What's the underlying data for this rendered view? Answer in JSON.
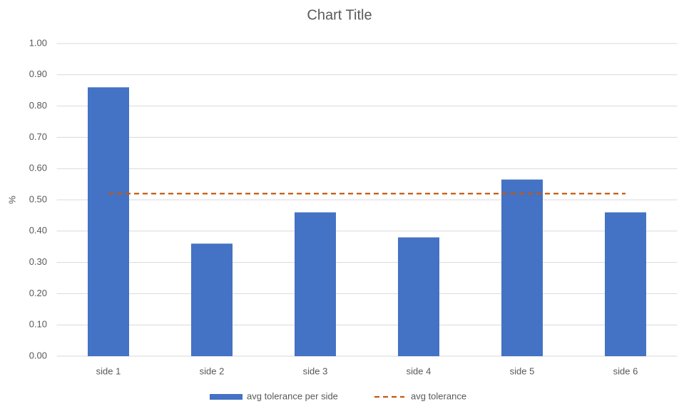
{
  "chart_data": {
    "type": "bar",
    "title": "Chart Title",
    "y_label": "%",
    "categories": [
      "side 1",
      "side 2",
      "side 3",
      "side 4",
      "side 5",
      "side 6"
    ],
    "series": [
      {
        "name": "avg tolerance per side",
        "type": "bar",
        "color": "#4472c4",
        "values": [
          0.86,
          0.36,
          0.46,
          0.38,
          0.565,
          0.46
        ]
      },
      {
        "name": "avg tolerance",
        "type": "line",
        "dashed": true,
        "color": "#c55a11",
        "values": [
          0.52,
          0.52,
          0.52,
          0.52,
          0.52,
          0.52
        ]
      }
    ],
    "ylim": [
      0,
      1
    ],
    "yticks": [
      {
        "value": 0,
        "label": "0.00"
      },
      {
        "value": 0.1,
        "label": "0.10"
      },
      {
        "value": 0.2,
        "label": "0.20"
      },
      {
        "value": 0.3,
        "label": "0.30"
      },
      {
        "value": 0.4,
        "label": "0.40"
      },
      {
        "value": 0.5,
        "label": "0.50"
      },
      {
        "value": 0.6,
        "label": "0.60"
      },
      {
        "value": 0.7,
        "label": "0.70"
      },
      {
        "value": 0.8,
        "label": "0.80"
      },
      {
        "value": 0.9,
        "label": "0.90"
      },
      {
        "value": 1,
        "label": "1.00"
      }
    ],
    "grid": true,
    "legend": "bottom"
  }
}
